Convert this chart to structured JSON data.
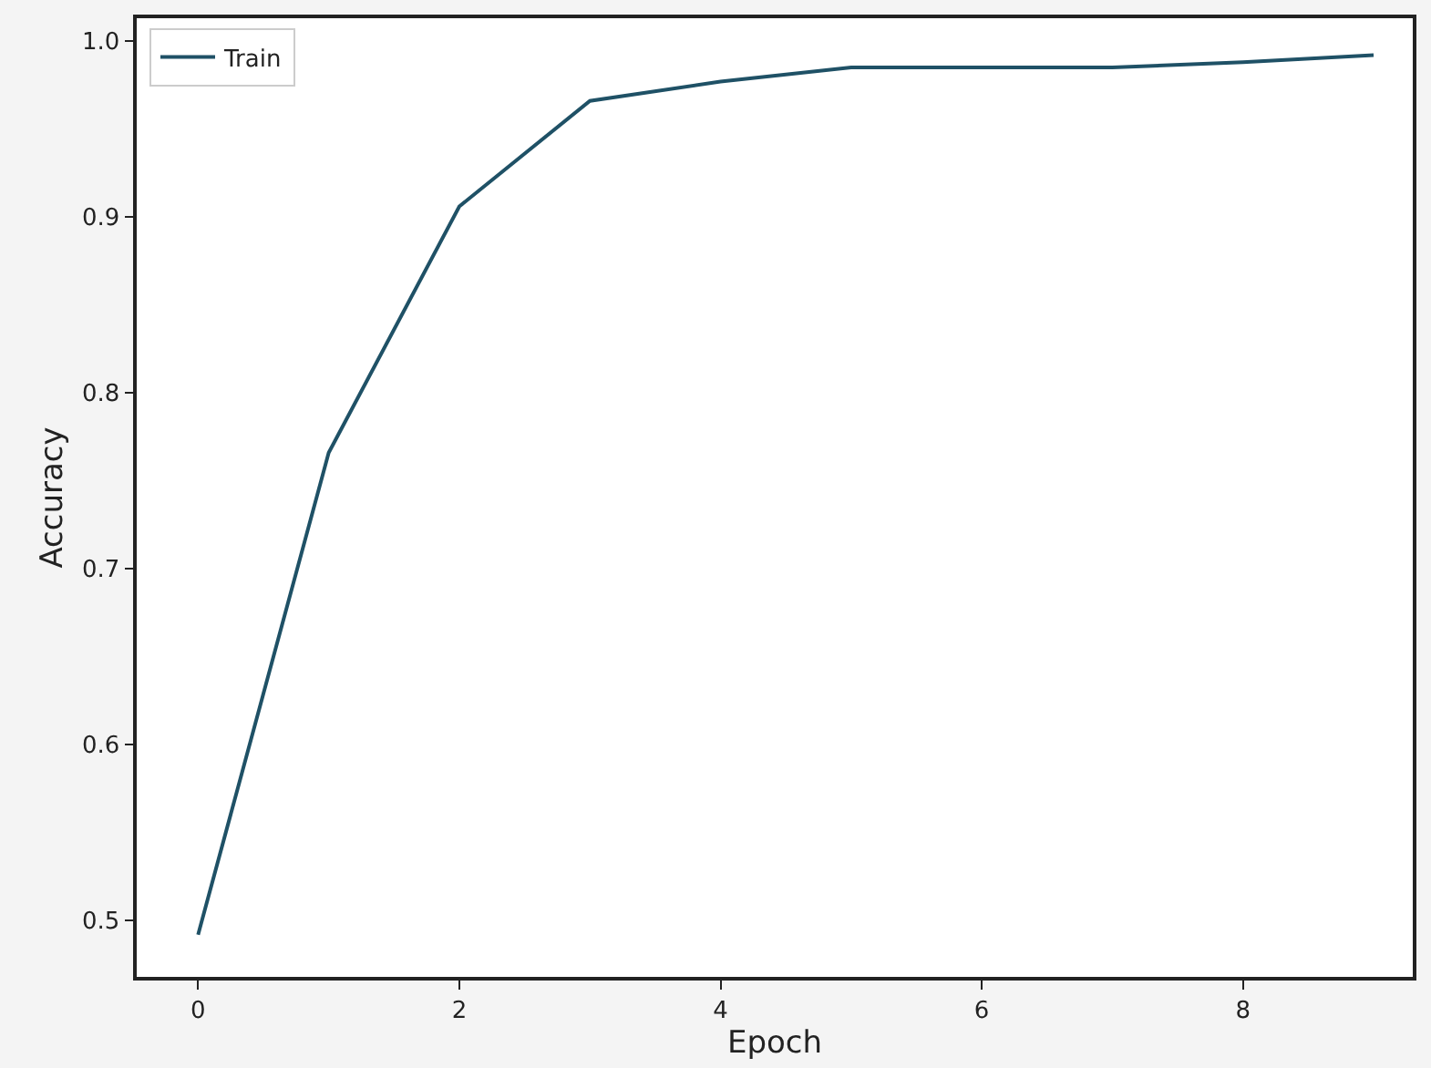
{
  "chart_data": {
    "type": "line",
    "xlabel": "Epoch",
    "ylabel": "Accuracy",
    "x": [
      0,
      1,
      2,
      3,
      4,
      5,
      6,
      7,
      8,
      9
    ],
    "series": [
      {
        "name": "Train",
        "color": "#1f5166",
        "values": [
          0.492,
          0.766,
          0.906,
          0.966,
          0.977,
          0.985,
          0.985,
          0.985,
          0.988,
          0.992
        ]
      }
    ],
    "xlim": [
      -0.47,
      9.3
    ],
    "ylim": [
      0.468,
      1.013
    ],
    "xticks": [
      0,
      2,
      4,
      6,
      8
    ],
    "yticks": [
      0.5,
      0.6,
      0.7,
      0.8,
      0.9,
      {
        "value": 1.0,
        "label": "1.0"
      }
    ],
    "legend": "top left",
    "marker": "none",
    "line_style": "solid"
  }
}
